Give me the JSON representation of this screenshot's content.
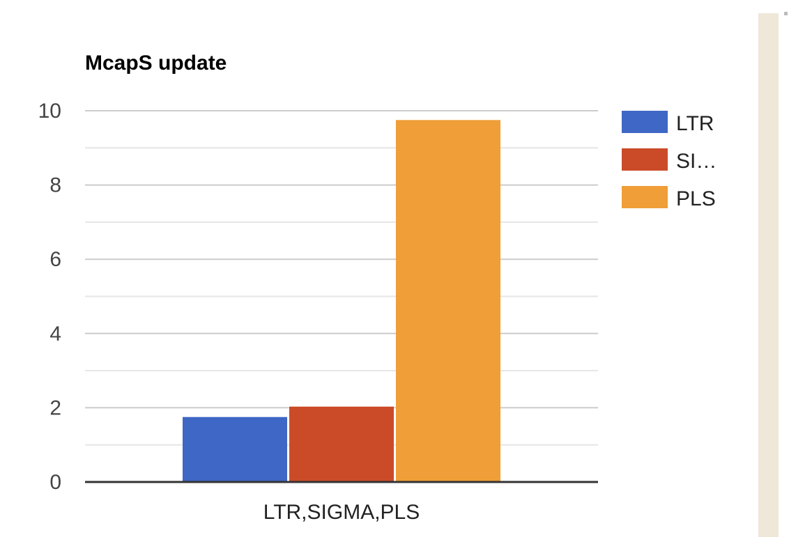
{
  "chart_data": {
    "type": "bar",
    "title": "McapS update",
    "categories": [
      "LTR,SIGMA,PLS"
    ],
    "series": [
      {
        "name": "LTR",
        "legend_label": "LTR",
        "color": "#3f67c5",
        "values": [
          1.75
        ]
      },
      {
        "name": "SIGMA",
        "legend_label": "SI…",
        "color": "#cb4b29",
        "values": [
          2.03
        ]
      },
      {
        "name": "PLS",
        "legend_label": "PLS",
        "color": "#ef9e38",
        "values": [
          9.75
        ]
      }
    ],
    "yticks": [
      "0",
      "2",
      "4",
      "6",
      "8",
      "10"
    ],
    "ylim": [
      0,
      10
    ],
    "grid": true,
    "legend_position": "right"
  },
  "colors": {
    "gridline": "#cccccc",
    "minor_gridline": "#e6e6e6",
    "axis": "#333333",
    "side_panel": "#efe7d7"
  }
}
